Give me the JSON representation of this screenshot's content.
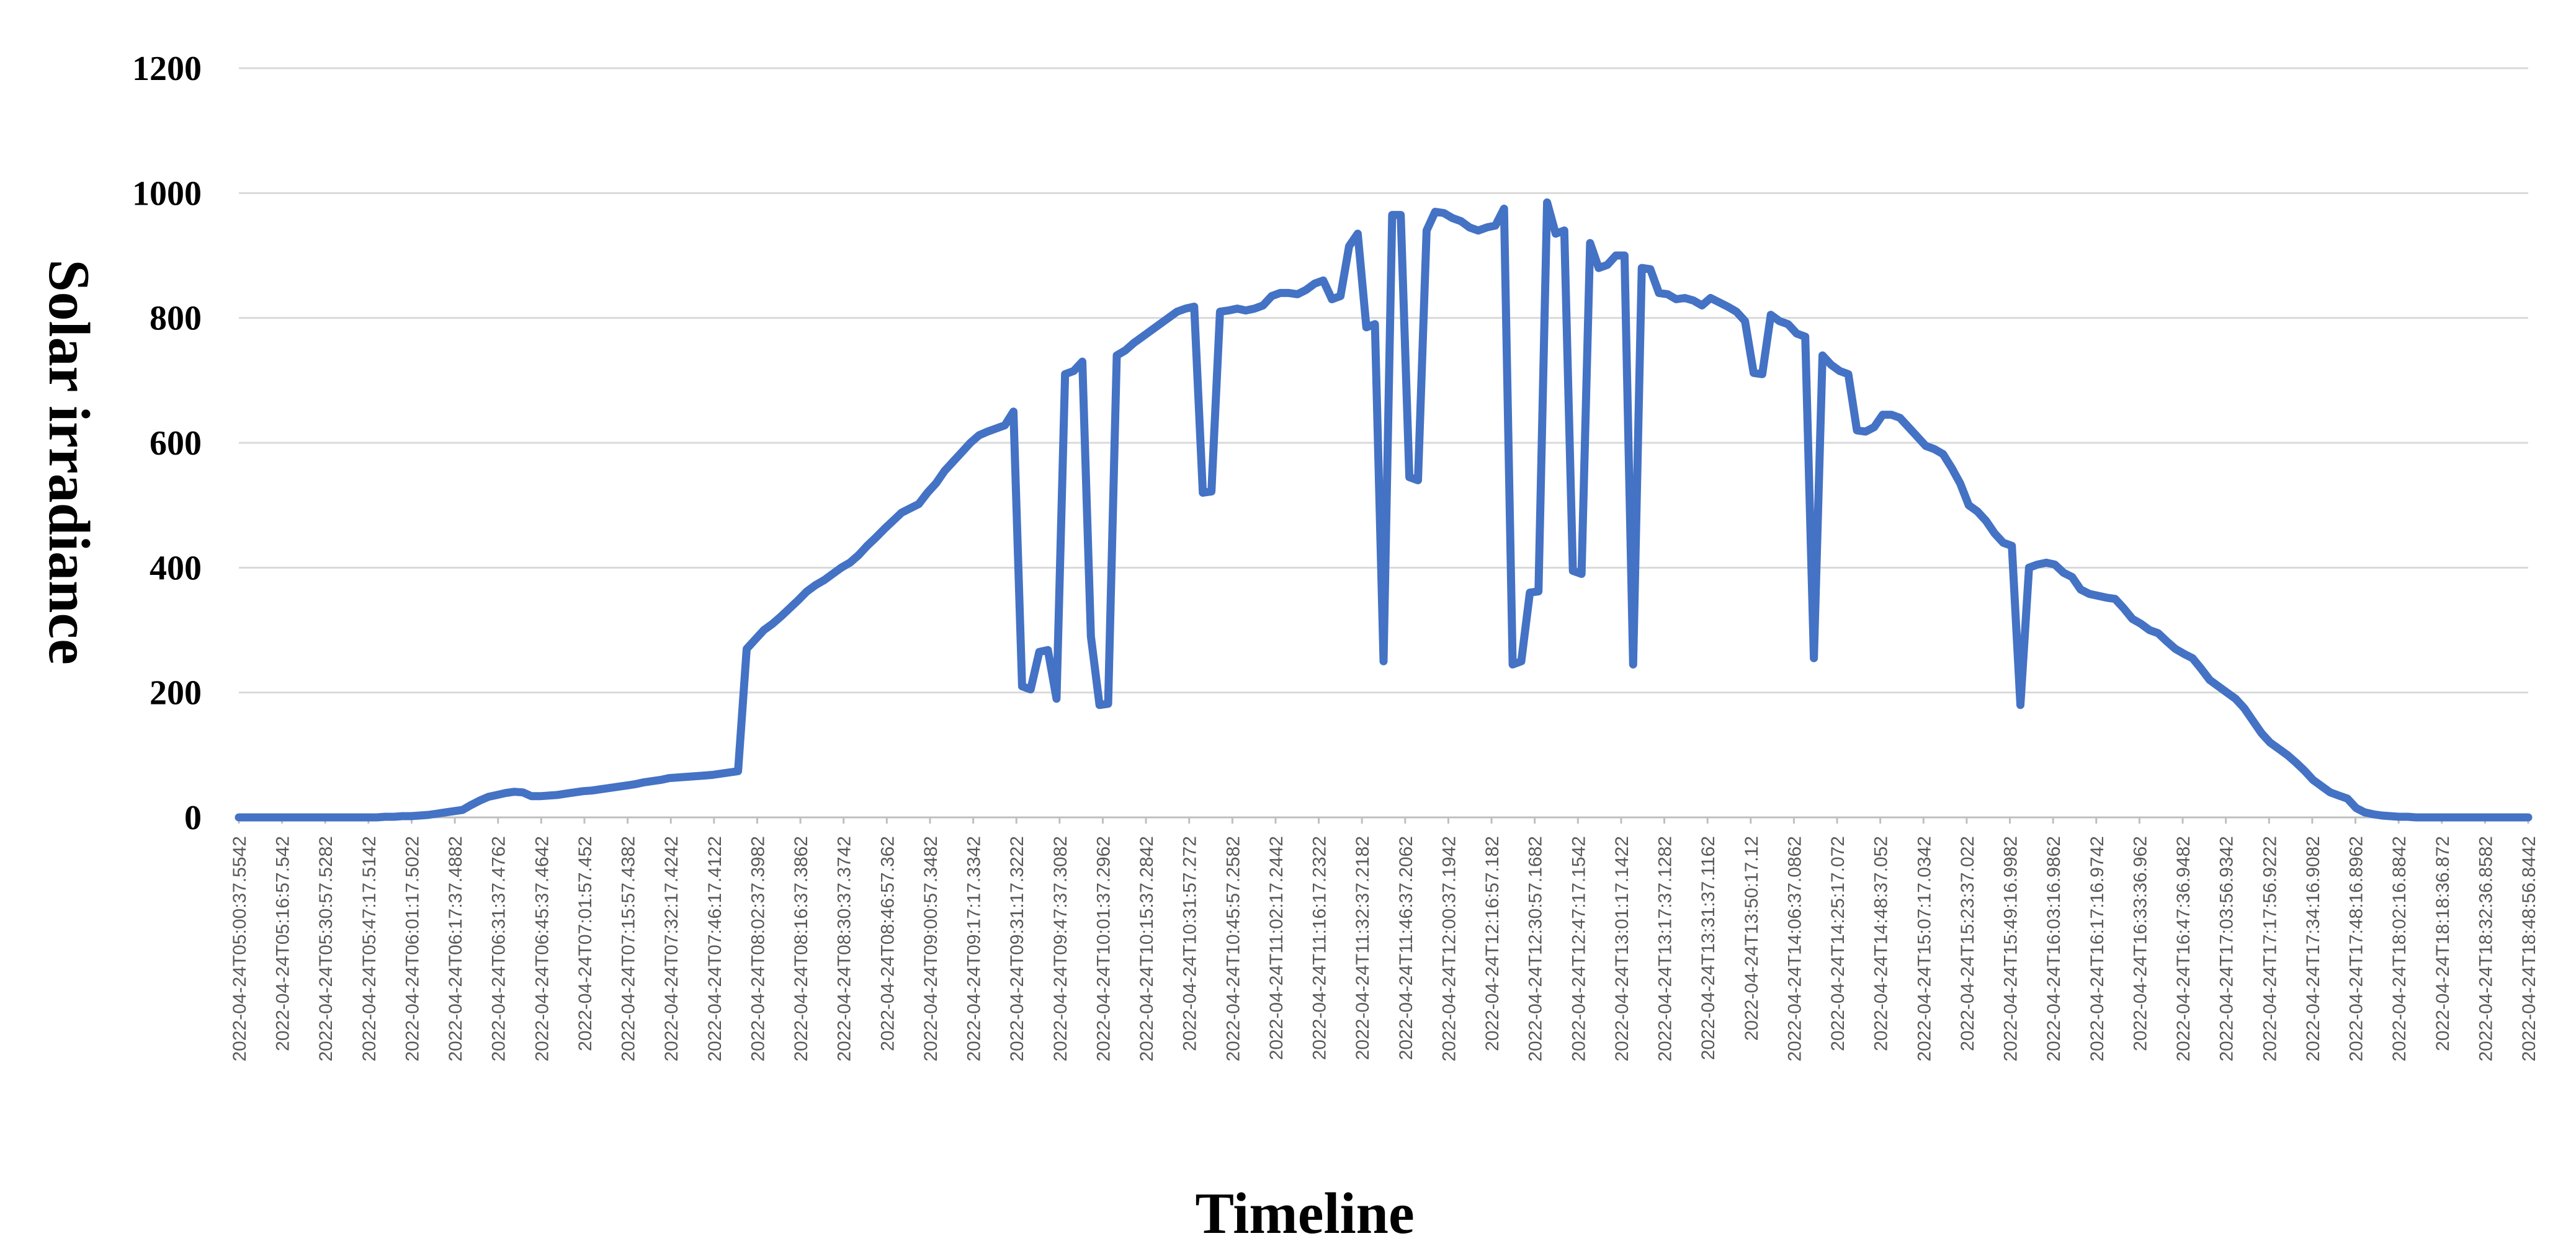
{
  "chart_data": {
    "type": "line",
    "title": "",
    "xlabel": "Timeline",
    "ylabel": "Solar irradiance",
    "ylim": [
      0,
      1200
    ],
    "yticks": [
      0,
      200,
      400,
      600,
      800,
      1000,
      1200
    ],
    "grid": true,
    "legend": "none",
    "series_color": "#4472c4",
    "x_tick_labels": [
      "2022-04-24T05:00:37.5542",
      "2022-04-24T05:16:57.542",
      "2022-04-24T05:30:57.5282",
      "2022-04-24T05:47:17.5142",
      "2022-04-24T06:01:17.5022",
      "2022-04-24T06:17:37.4882",
      "2022-04-24T06:31:37.4762",
      "2022-04-24T06:45:37.4642",
      "2022-04-24T07:01:57.452",
      "2022-04-24T07:15:57.4382",
      "2022-04-24T07:32:17.4242",
      "2022-04-24T07:46:17.4122",
      "2022-04-24T08:02:37.3982",
      "2022-04-24T08:16:37.3862",
      "2022-04-24T08:30:37.3742",
      "2022-04-24T08:46:57.362",
      "2022-04-24T09:00:57.3482",
      "2022-04-24T09:17:17.3342",
      "2022-04-24T09:31:17.3222",
      "2022-04-24T09:47:37.3082",
      "2022-04-24T10:01:37.2962",
      "2022-04-24T10:15:37.2842",
      "2022-04-24T10:31:57.272",
      "2022-04-24T10:45:57.2582",
      "2022-04-24T11:02:17.2442",
      "2022-04-24T11:16:17.2322",
      "2022-04-24T11:32:37.2182",
      "2022-04-24T11:46:37.2062",
      "2022-04-24T12:00:37.1942",
      "2022-04-24T12:16:57.182",
      "2022-04-24T12:30:57.1682",
      "2022-04-24T12:47:17.1542",
      "2022-04-24T13:01:17.1422",
      "2022-04-24T13:17:37.1282",
      "2022-04-24T13:31:37.1162",
      "2022-04-24T13:50:17.12",
      "2022-04-24T14:06:37.0862",
      "2022-04-24T14:25:17.072",
      "2022-04-24T14:48:37.052",
      "2022-04-24T15:07:17.0342",
      "2022-04-24T15:23:37.022",
      "2022-04-24T15:49:16.9982",
      "2022-04-24T16:03:16.9862",
      "2022-04-24T16:17:16.9742",
      "2022-04-24T16:33:36.962",
      "2022-04-24T16:47:36.9482",
      "2022-04-24T17:03:56.9342",
      "2022-04-24T17:17:56.9222",
      "2022-04-24T17:34:16.9082",
      "2022-04-24T17:48:16.8962",
      "2022-04-24T18:02:16.8842",
      "2022-04-24T18:18:36.872",
      "2022-04-24T18:32:36.8582",
      "2022-04-24T18:48:56.8442"
    ],
    "series": [
      {
        "values": [
          0,
          0,
          0,
          0,
          0,
          0,
          0,
          0,
          0,
          0,
          0,
          0,
          0,
          0,
          0,
          0,
          0,
          1,
          1,
          2,
          2,
          3,
          4,
          6,
          8,
          10,
          12,
          20,
          27,
          33,
          36,
          39,
          41,
          40,
          34,
          34,
          35,
          36,
          38,
          40,
          42,
          43,
          45,
          47,
          49,
          51,
          53,
          56,
          58,
          60,
          63,
          64,
          65,
          66,
          67,
          68,
          70,
          72,
          74,
          270,
          285,
          300,
          310,
          322,
          335,
          348,
          362,
          372,
          380,
          390,
          400,
          408,
          420,
          435,
          448,
          462,
          475,
          488,
          495,
          502,
          520,
          535,
          555,
          570,
          585,
          600,
          612,
          618,
          623,
          628,
          650,
          210,
          205,
          265,
          268,
          190,
          710,
          715,
          730,
          290,
          180,
          182,
          740,
          748,
          760,
          770,
          780,
          790,
          800,
          810,
          815,
          818,
          520,
          522,
          810,
          812,
          815,
          812,
          815,
          820,
          835,
          840,
          840,
          838,
          845,
          855,
          860,
          830,
          835,
          915,
          935,
          785,
          790,
          250,
          965,
          965,
          545,
          540,
          940,
          970,
          968,
          960,
          955,
          945,
          940,
          945,
          948,
          975,
          245,
          250,
          360,
          362,
          985,
          935,
          940,
          395,
          390,
          920,
          880,
          885,
          900,
          900,
          245,
          880,
          878,
          840,
          838,
          830,
          832,
          828,
          820,
          832,
          825,
          818,
          810,
          795,
          712,
          710,
          805,
          795,
          790,
          775,
          770,
          255,
          740,
          725,
          715,
          710,
          620,
          618,
          625,
          645,
          645,
          640,
          625,
          610,
          595,
          590,
          582,
          560,
          535,
          500,
          490,
          475,
          455,
          440,
          435,
          180,
          400,
          405,
          408,
          405,
          392,
          385,
          365,
          358,
          355,
          352,
          350,
          335,
          318,
          310,
          300,
          295,
          282,
          270,
          262,
          255,
          238,
          220,
          210,
          200,
          190,
          175,
          155,
          135,
          120,
          110,
          100,
          88,
          75,
          60,
          50,
          40,
          35,
          30,
          15,
          8,
          5,
          3,
          2,
          1,
          1,
          0,
          0,
          0,
          0,
          0,
          0,
          0,
          0,
          0,
          0,
          0,
          0,
          0,
          0
        ]
      }
    ]
  }
}
